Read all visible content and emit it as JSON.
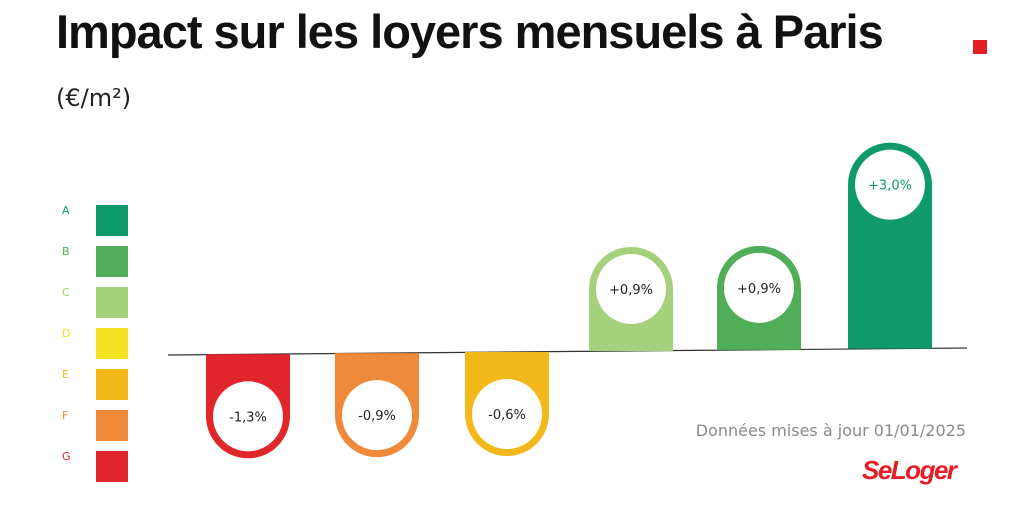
{
  "title": "Impact sur les loyers mensuels à Paris",
  "subtitle": "(€/m²)",
  "note": "Données mises à jour 01/01/2025",
  "brand": "SeLoger",
  "colors": {
    "accent": "#e31e24",
    "A": "#0f9a6b",
    "B": "#4fae57",
    "C": "#a5d07c",
    "D": "#f2e222",
    "E": "#f3b91b",
    "F": "#ef8a3a",
    "G": "#e0262b",
    "baseline": "#333333"
  },
  "chart_data": {
    "type": "bar",
    "categories": [
      "G",
      "F",
      "E",
      "C",
      "B",
      "A"
    ],
    "values": [
      -1.3,
      -0.9,
      -0.6,
      0.9,
      0.9,
      3.0
    ],
    "labels": [
      "-1,3%",
      "-0,9%",
      "-0,6%",
      "+0,9%",
      "+0,9%",
      "+3,0%"
    ],
    "unit": "%",
    "legend": {
      "position": "left",
      "classes": [
        "A",
        "B",
        "C",
        "D",
        "E",
        "F",
        "G"
      ]
    }
  }
}
